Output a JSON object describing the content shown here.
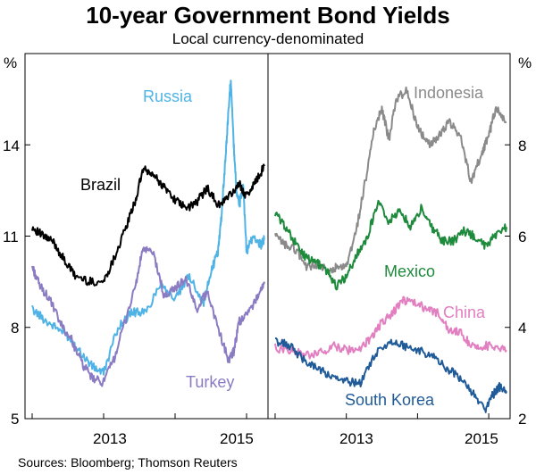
{
  "header": {
    "title": "10-year Government Bond Yields",
    "subtitle": "Local currency-denominated"
  },
  "footer": {
    "source": "Sources:   Bloomberg; Thomson Reuters"
  },
  "chart_data": [
    {
      "type": "line",
      "panel": "left",
      "y_unit": "%",
      "ylim": [
        5,
        17
      ],
      "yticks": [
        5,
        8,
        11,
        14
      ],
      "xlim": [
        2011.9,
        2015.3
      ],
      "xticks": [
        "2013",
        "2015"
      ],
      "grid": false,
      "series": [
        {
          "name": "Russia",
          "color": "#4fb3e6",
          "x": [
            2012.0,
            2012.2,
            2012.4,
            2012.55,
            2012.7,
            2012.85,
            2013.0,
            2013.2,
            2013.4,
            2013.6,
            2013.8,
            2014.0,
            2014.2,
            2014.4,
            2014.5,
            2014.6,
            2014.65,
            2014.7,
            2014.75,
            2014.78,
            2014.82,
            2014.86,
            2014.9,
            2014.95,
            2015.0,
            2015.1,
            2015.2,
            2015.25
          ],
          "y": [
            8.6,
            8.2,
            7.9,
            7.6,
            7.1,
            6.7,
            6.5,
            8.0,
            8.5,
            8.5,
            9.5,
            8.9,
            9.7,
            8.8,
            9.8,
            10.5,
            11.7,
            13.4,
            15.2,
            16.2,
            14.0,
            12.5,
            12.0,
            12.7,
            10.5,
            11.0,
            10.7,
            10.9
          ]
        },
        {
          "name": "Brazil",
          "color": "#000000",
          "x": [
            2012.0,
            2012.15,
            2012.3,
            2012.45,
            2012.6,
            2012.8,
            2013.0,
            2013.15,
            2013.3,
            2013.45,
            2013.55,
            2013.7,
            2013.85,
            2014.0,
            2014.15,
            2014.3,
            2014.45,
            2014.6,
            2014.75,
            2014.9,
            2015.0,
            2015.1,
            2015.25
          ],
          "y": [
            11.3,
            11.0,
            10.8,
            10.2,
            9.7,
            9.5,
            9.5,
            10.3,
            11.2,
            12.2,
            13.2,
            13.0,
            12.6,
            12.2,
            11.9,
            12.1,
            12.6,
            12.0,
            12.3,
            12.7,
            12.3,
            12.7,
            13.3
          ]
        },
        {
          "name": "Turkey",
          "color": "#8a7bc2",
          "x": [
            2012.0,
            2012.1,
            2012.25,
            2012.4,
            2012.55,
            2012.7,
            2012.85,
            2013.0,
            2013.15,
            2013.3,
            2013.45,
            2013.55,
            2013.7,
            2013.85,
            2014.0,
            2014.15,
            2014.3,
            2014.45,
            2014.6,
            2014.75,
            2014.82,
            2014.9,
            2015.0,
            2015.15,
            2015.25
          ],
          "y": [
            10.0,
            9.4,
            8.9,
            8.1,
            7.6,
            6.8,
            6.3,
            6.2,
            7.0,
            8.2,
            9.4,
            10.6,
            10.4,
            9.0,
            9.3,
            9.6,
            8.6,
            9.2,
            8.0,
            6.9,
            7.2,
            8.2,
            8.4,
            9.0,
            9.5
          ]
        }
      ],
      "annotations": [
        "Russia",
        "Brazil",
        "Turkey"
      ]
    },
    {
      "type": "line",
      "panel": "right",
      "y_unit": "%",
      "ylim": [
        2,
        10
      ],
      "yticks": [
        2,
        4,
        6,
        8
      ],
      "xlim": [
        2011.9,
        2015.3
      ],
      "xticks": [
        "2013",
        "2015"
      ],
      "grid": false,
      "series": [
        {
          "name": "Indonesia",
          "color": "#8a8a8a",
          "x": [
            2012.0,
            2012.15,
            2012.3,
            2012.45,
            2012.6,
            2012.75,
            2012.85,
            2013.0,
            2013.15,
            2013.3,
            2013.4,
            2013.5,
            2013.6,
            2013.7,
            2013.85,
            2014.0,
            2014.15,
            2014.3,
            2014.45,
            2014.6,
            2014.75,
            2014.9,
            2015.0,
            2015.1,
            2015.25
          ],
          "y": [
            6.0,
            5.8,
            5.7,
            5.3,
            5.4,
            5.2,
            5.3,
            5.3,
            6.2,
            7.5,
            8.4,
            8.8,
            8.1,
            9.0,
            9.2,
            8.4,
            8.0,
            8.2,
            8.5,
            8.2,
            7.2,
            7.8,
            8.2,
            8.8,
            8.5
          ]
        },
        {
          "name": "Mexico",
          "color": "#1e8a3c",
          "x": [
            2012.0,
            2012.15,
            2012.3,
            2012.45,
            2012.6,
            2012.75,
            2012.85,
            2013.0,
            2013.15,
            2013.3,
            2013.45,
            2013.6,
            2013.75,
            2013.9,
            2014.05,
            2014.2,
            2014.35,
            2014.5,
            2014.65,
            2014.8,
            2014.95,
            2015.1,
            2015.25
          ],
          "y": [
            6.5,
            6.2,
            5.8,
            5.5,
            5.4,
            5.2,
            4.9,
            5.1,
            5.6,
            6.0,
            6.8,
            6.3,
            6.6,
            6.2,
            6.6,
            6.2,
            5.9,
            5.9,
            6.1,
            6.0,
            5.8,
            6.0,
            6.2
          ]
        },
        {
          "name": "China",
          "color": "#e27fc0",
          "x": [
            2012.0,
            2012.2,
            2012.4,
            2012.6,
            2012.8,
            2013.0,
            2013.2,
            2013.35,
            2013.5,
            2013.65,
            2013.8,
            2014.0,
            2014.15,
            2014.3,
            2014.45,
            2014.6,
            2014.75,
            2014.9,
            2015.05,
            2015.25
          ],
          "y": [
            3.55,
            3.5,
            3.4,
            3.4,
            3.6,
            3.5,
            3.5,
            3.8,
            4.1,
            4.3,
            4.6,
            4.5,
            4.4,
            4.3,
            3.9,
            3.9,
            3.6,
            3.6,
            3.6,
            3.5
          ]
        },
        {
          "name": "South Korea",
          "color": "#1f5a99",
          "x": [
            2012.0,
            2012.2,
            2012.4,
            2012.6,
            2012.8,
            2013.0,
            2013.2,
            2013.4,
            2013.6,
            2013.8,
            2014.0,
            2014.2,
            2014.4,
            2014.6,
            2014.8,
            2014.95,
            2015.05,
            2015.15,
            2015.25
          ],
          "y": [
            3.7,
            3.6,
            3.3,
            3.1,
            2.9,
            2.8,
            2.8,
            3.4,
            3.7,
            3.6,
            3.5,
            3.4,
            3.1,
            2.9,
            2.5,
            2.2,
            2.5,
            2.7,
            2.6
          ]
        }
      ],
      "annotations": [
        "Indonesia",
        "Mexico",
        "China",
        "South Korea"
      ]
    }
  ],
  "labels": {
    "russia": "Russia",
    "brazil": "Brazil",
    "turkey": "Turkey",
    "indonesia": "Indonesia",
    "mexico": "Mexico",
    "china": "China",
    "south_korea": "South Korea"
  },
  "axis": {
    "unit": "%",
    "left_yticks": [
      "14",
      "11",
      "8",
      "5"
    ],
    "right_yticks": [
      "8",
      "6",
      "4",
      "2"
    ],
    "left_xticks": [
      "2013",
      "2015"
    ],
    "right_xticks": [
      "2013",
      "2015"
    ]
  },
  "colors": {
    "russia": "#4fb3e6",
    "brazil": "#000000",
    "turkey": "#8a7bc2",
    "indonesia": "#8a8a8a",
    "mexico": "#1e8a3c",
    "china": "#e27fc0",
    "south_korea": "#1f5a99"
  }
}
